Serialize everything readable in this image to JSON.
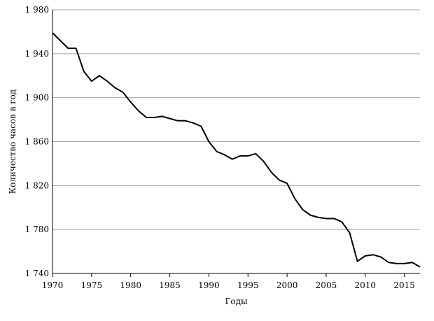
{
  "chart_data": {
    "type": "line",
    "title": "",
    "xlabel": "Годы",
    "ylabel": "Количество часов в год",
    "xlim": [
      1970,
      2017
    ],
    "ylim": [
      1740,
      1980
    ],
    "grid": "horizontal",
    "legend": "none",
    "line_color": "#000000",
    "grid_color": "#a6a6a6",
    "x_ticks": [
      1970,
      1975,
      1980,
      1985,
      1990,
      1995,
      2000,
      2005,
      2010,
      2015
    ],
    "y_ticks": [
      1740,
      1780,
      1820,
      1860,
      1900,
      1940,
      1980
    ],
    "y_tick_labels": [
      "1 740",
      "1 780",
      "1 820",
      "1 860",
      "1 900",
      "1 940",
      "1 980"
    ],
    "series": [
      {
        "x": [
          1970,
          1971,
          1972,
          1973,
          1974,
          1975,
          1976,
          1977,
          1978,
          1979,
          1980,
          1981,
          1982,
          1983,
          1984,
          1985,
          1986,
          1987,
          1988,
          1989,
          1990,
          1991,
          1992,
          1993,
          1994,
          1995,
          1996,
          1997,
          1998,
          1999,
          2000,
          2001,
          2002,
          2003,
          2004,
          2005,
          2006,
          2007,
          2008,
          2009,
          2010,
          2011,
          2012,
          2013,
          2014,
          2015,
          2016,
          2017
        ],
        "values": [
          1959,
          1952,
          1945,
          1945,
          1924,
          1915,
          1920,
          1915,
          1909,
          1905,
          1896,
          1888,
          1882,
          1882,
          1883,
          1881,
          1879,
          1879,
          1877,
          1874,
          1860,
          1851,
          1848,
          1844,
          1847,
          1847,
          1849,
          1842,
          1832,
          1825,
          1822,
          1808,
          1798,
          1793,
          1791,
          1790,
          1790,
          1787,
          1777,
          1751,
          1756,
          1757,
          1755,
          1750,
          1749,
          1749,
          1750,
          1746
        ]
      }
    ]
  }
}
